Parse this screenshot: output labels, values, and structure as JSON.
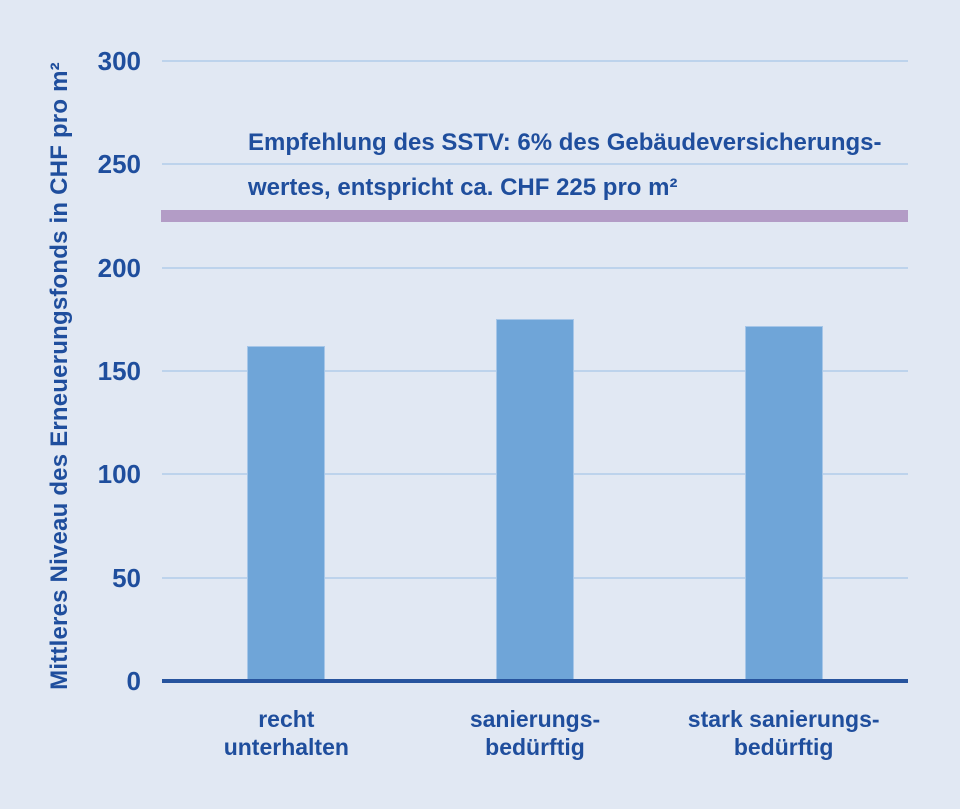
{
  "chart_data": {
    "type": "bar",
    "title": "",
    "xlabel": "",
    "ylabel": "Mittleres Niveau des Erneuerungsfonds in CHF pro m²",
    "categories": [
      {
        "lines": [
          "recht",
          "unterhalten"
        ]
      },
      {
        "lines": [
          "sanierungs-",
          "bedürftig"
        ]
      },
      {
        "lines": [
          "stark sanierungs-",
          "bedürftig"
        ]
      }
    ],
    "values": [
      162,
      175,
      172
    ],
    "y_ticks": [
      0,
      50,
      100,
      150,
      200,
      250,
      300
    ],
    "ylim": [
      0,
      300
    ],
    "grid": true,
    "legend": "none",
    "annotation": {
      "line1": "Empfehlung des SSTV: 6% des Gebäudeversicherungs-",
      "line2": "wertes, entspricht ca. CHF 225 pro m²",
      "reference_value": 225
    },
    "colors": {
      "background": "#e1e8f3",
      "bar_fill": "#6fa5d8",
      "bar_border": "#a6c6e8",
      "gridline": "#bdd3ec",
      "axis_line": "#27549e",
      "text": "#1f4e9d",
      "reference_line": "#b39cc6"
    }
  }
}
